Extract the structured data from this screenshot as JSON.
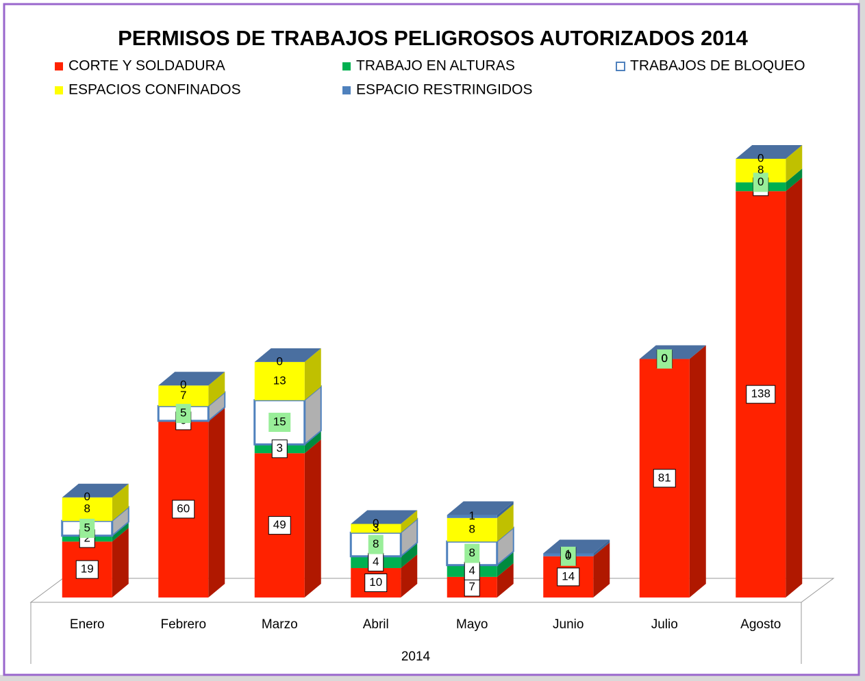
{
  "chart_data": {
    "type": "bar3d_stacked",
    "title": "PERMISOS DE TRABAJOS PELIGROSOS AUTORIZADOS 2014",
    "xlabel": "2014",
    "categories": [
      "Enero",
      "Febrero",
      "Marzo",
      "Abril",
      "Mayo",
      "Junio",
      "Julio",
      "Agosto"
    ],
    "series": [
      {
        "name": "CORTE Y SOLDADURA",
        "color": "#ff2200",
        "values": [
          19,
          60,
          49,
          10,
          7,
          14,
          81,
          138
        ]
      },
      {
        "name": "TRABAJO EN ALTURAS",
        "color": "#00b050",
        "values": [
          2,
          0,
          3,
          4,
          4,
          0,
          0,
          3
        ]
      },
      {
        "name": "TRABAJOS DE BLOQUEO",
        "color": "#ffffff",
        "values": [
          5,
          5,
          15,
          8,
          8,
          0,
          0,
          0
        ]
      },
      {
        "name": "ESPACIOS CONFINADOS",
        "color": "#ffff00",
        "values": [
          8,
          7,
          13,
          3,
          8,
          0,
          0,
          8
        ]
      },
      {
        "name": "ESPACIO RESTRINGIDOS",
        "color": "#4f81bd",
        "values": [
          0,
          0,
          0,
          0,
          1,
          1,
          0,
          0
        ]
      }
    ],
    "legend": "top"
  }
}
